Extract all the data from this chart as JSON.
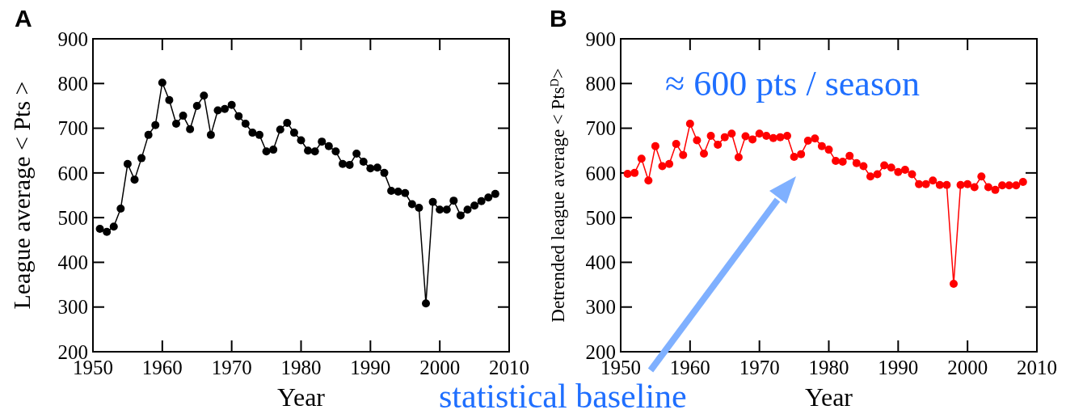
{
  "chart_data": [
    {
      "type": "line",
      "annotations": [
        "A"
      ],
      "xlabel": "Year",
      "ylabel": "League average < Pts >",
      "xlim": [
        1950,
        2010
      ],
      "xticks": [
        1950,
        1960,
        1970,
        1980,
        1990,
        2000,
        2010
      ],
      "ylim": [
        200,
        900
      ],
      "yticks": [
        200,
        300,
        400,
        500,
        600,
        700,
        800,
        900
      ],
      "marker": "circle",
      "x": [
        1951,
        1952,
        1953,
        1954,
        1955,
        1956,
        1957,
        1958,
        1959,
        1960,
        1961,
        1962,
        1963,
        1964,
        1965,
        1966,
        1967,
        1968,
        1969,
        1970,
        1971,
        1972,
        1973,
        1974,
        1975,
        1976,
        1977,
        1978,
        1979,
        1980,
        1981,
        1982,
        1983,
        1984,
        1985,
        1986,
        1987,
        1988,
        1989,
        1990,
        1991,
        1992,
        1993,
        1994,
        1995,
        1996,
        1997,
        1998,
        1999,
        2000,
        2001,
        2002,
        2003,
        2004,
        2005,
        2006,
        2007,
        2008
      ],
      "series": [
        {
          "color": "#000000",
          "values": [
            475,
            468,
            480,
            520,
            620,
            585,
            633,
            685,
            707,
            802,
            763,
            710,
            728,
            698,
            750,
            773,
            685,
            740,
            743,
            752,
            727,
            710,
            690,
            685,
            648,
            652,
            697,
            712,
            690,
            673,
            650,
            648,
            670,
            660,
            648,
            620,
            618,
            643,
            625,
            610,
            612,
            600,
            560,
            558,
            555,
            530,
            522,
            308,
            535,
            518,
            518,
            538,
            505,
            518,
            527,
            537,
            545,
            553
          ]
        }
      ]
    },
    {
      "type": "line",
      "annotations": [
        "B",
        "≈ 600 pts / season",
        "statistical baseline"
      ],
      "xlabel": "Year",
      "ylabel": "Detrended league average < Pts$^{D}$>",
      "xlim": [
        1950,
        2010
      ],
      "xticks": [
        1950,
        1960,
        1970,
        1980,
        1990,
        2000,
        2010
      ],
      "ylim": [
        200,
        900
      ],
      "yticks": [
        200,
        300,
        400,
        500,
        600,
        700,
        800,
        900
      ],
      "marker": "circle",
      "x": [
        1951,
        1952,
        1953,
        1954,
        1955,
        1956,
        1957,
        1958,
        1959,
        1960,
        1961,
        1962,
        1963,
        1964,
        1965,
        1966,
        1967,
        1968,
        1969,
        1970,
        1971,
        1972,
        1973,
        1974,
        1975,
        1976,
        1977,
        1978,
        1979,
        1980,
        1981,
        1982,
        1983,
        1984,
        1985,
        1986,
        1987,
        1988,
        1989,
        1990,
        1991,
        1992,
        1993,
        1994,
        1995,
        1996,
        1997,
        1998,
        1999,
        2000,
        2001,
        2002,
        2003,
        2004,
        2005,
        2006,
        2007,
        2008
      ],
      "series": [
        {
          "color": "#ff0000",
          "values": [
            598,
            600,
            632,
            583,
            660,
            615,
            620,
            665,
            640,
            710,
            673,
            643,
            683,
            663,
            680,
            688,
            635,
            682,
            675,
            688,
            683,
            678,
            680,
            683,
            636,
            642,
            672,
            677,
            660,
            652,
            627,
            625,
            638,
            622,
            615,
            592,
            597,
            617,
            612,
            602,
            607,
            597,
            575,
            575,
            583,
            573,
            573,
            352,
            573,
            575,
            568,
            592,
            568,
            562,
            572,
            572,
            572,
            580
          ]
        }
      ]
    }
  ]
}
